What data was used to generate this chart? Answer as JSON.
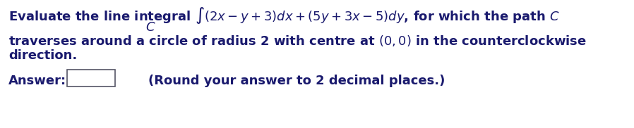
{
  "line1a": "Evaluate the line integral ",
  "line1b": "$\\int(2x - y + 3)dx + (5y + 3x - 5)dy$, for which the path $C$",
  "line2_c": "$C$",
  "line3": "traverses around a circle of radius 2 with centre at $(0, 0)$ in the counterclockwise",
  "line4": "direction.",
  "answer_label": "Answer:",
  "round_note": "(Round your answer to 2 decimal places.)",
  "bg_color": "#ffffff",
  "text_color": "#1a1a6e",
  "font_size": 13.0,
  "fig_width": 8.98,
  "fig_height": 1.82,
  "dpi": 100
}
